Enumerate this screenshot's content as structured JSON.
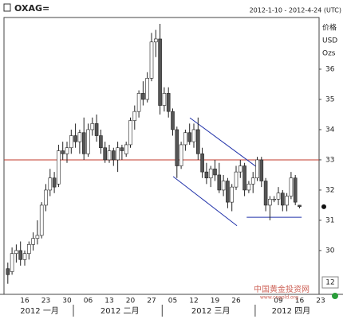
{
  "chart_data": {
    "type": "candlestick",
    "title": "OXAG=",
    "subtitle": "2012-1-10 - 2012-4-24 (UTC)",
    "axis_label": [
      "价格",
      "USD",
      "Ozs"
    ],
    "categories": [
      null,
      null,
      null,
      null,
      "16",
      null,
      null,
      null,
      null,
      "23",
      null,
      null,
      null,
      null,
      "30",
      null,
      null,
      null,
      null,
      "06",
      null,
      null,
      null,
      null,
      "13",
      null,
      null,
      null,
      null,
      "20",
      null,
      null,
      null,
      null,
      "27",
      null,
      null,
      null,
      null,
      "05",
      null,
      null,
      null,
      null,
      "12",
      null,
      null,
      null,
      null,
      "19",
      null,
      null,
      null,
      null,
      "26",
      null,
      null,
      null,
      null,
      null,
      null,
      null,
      null,
      null,
      "09",
      null,
      null,
      null,
      null,
      "16",
      null,
      null,
      null,
      null,
      "23"
    ],
    "months": [
      "2012 一月",
      "2012 二月",
      "2012 三月",
      "2012 四月"
    ],
    "open": [
      29.4,
      29.3,
      29.9,
      30.0,
      29.7,
      29.9,
      30.2,
      30.4,
      30.5,
      31.5,
      32.0,
      32.4,
      32.2,
      33.3,
      33.2,
      33.4,
      33.8,
      33.6,
      33.9,
      33.2,
      34.0,
      34.2,
      33.8,
      33.4,
      33.0,
      33.3,
      33.0,
      33.4,
      33.2,
      33.5,
      34.3,
      34.6,
      35.2,
      35.0,
      35.7,
      36.9,
      37.0,
      34.8,
      35.2,
      34.6,
      34.0,
      32.8,
      33.5,
      33.9,
      33.6,
      34.0,
      33.2,
      32.6,
      32.4,
      32.7,
      32.5,
      32.0,
      32.3,
      31.6,
      32.1,
      32.6,
      32.8,
      32.0,
      32.2,
      32.4,
      33.0,
      32.3,
      31.5,
      31.7,
      31.7,
      31.9,
      31.5,
      31.8,
      32.4,
      31.5,
      null,
      null,
      null,
      null,
      null
    ],
    "high": [
      29.6,
      30.1,
      30.2,
      30.3,
      30.0,
      30.3,
      30.6,
      31.0,
      31.6,
      32.2,
      32.7,
      32.6,
      33.5,
      33.6,
      33.6,
      34.0,
      34.2,
      34.0,
      34.4,
      34.2,
      34.4,
      34.5,
      34.0,
      33.6,
      33.5,
      33.4,
      33.6,
      33.5,
      33.6,
      34.4,
      34.8,
      35.3,
      35.6,
      35.9,
      37.2,
      37.3,
      37.5,
      35.4,
      35.4,
      34.7,
      34.1,
      33.6,
      34.0,
      34.2,
      34.2,
      34.4,
      33.4,
      32.9,
      32.8,
      33.0,
      32.9,
      32.5,
      32.4,
      32.2,
      32.8,
      33.0,
      32.9,
      32.3,
      32.6,
      33.1,
      33.1,
      32.4,
      31.8,
      31.8,
      32.1,
      32.0,
      31.9,
      32.6,
      32.5,
      31.5,
      null,
      null,
      null,
      null,
      null
    ],
    "low": [
      28.9,
      29.2,
      29.6,
      29.5,
      29.5,
      29.7,
      30.0,
      30.2,
      30.4,
      31.3,
      31.8,
      31.9,
      32.1,
      33.0,
      32.9,
      33.2,
      33.4,
      33.2,
      33.0,
      33.1,
      33.8,
      33.6,
      33.2,
      32.9,
      32.9,
      32.8,
      32.6,
      33.0,
      33.1,
      33.4,
      34.0,
      34.4,
      34.8,
      34.9,
      35.6,
      36.4,
      34.5,
      34.6,
      34.4,
      33.8,
      32.4,
      32.7,
      33.3,
      33.5,
      33.4,
      33.0,
      32.4,
      32.2,
      32.1,
      32.3,
      31.9,
      31.8,
      31.4,
      31.3,
      32.0,
      32.4,
      31.8,
      31.9,
      31.9,
      32.3,
      32.1,
      31.3,
      31.0,
      31.6,
      31.5,
      31.3,
      31.3,
      31.7,
      31.5,
      31.4,
      null,
      null,
      null,
      null,
      null
    ],
    "close": [
      29.2,
      29.9,
      30.0,
      29.7,
      29.9,
      30.2,
      30.4,
      30.5,
      31.5,
      32.0,
      32.4,
      32.1,
      33.3,
      33.2,
      33.4,
      33.8,
      33.6,
      33.9,
      33.2,
      34.0,
      34.2,
      33.8,
      33.4,
      33.0,
      33.3,
      33.0,
      33.4,
      33.3,
      33.5,
      34.3,
      34.6,
      35.2,
      35.0,
      35.7,
      36.9,
      37.0,
      34.8,
      35.2,
      34.6,
      34.0,
      32.8,
      33.5,
      33.9,
      33.6,
      34.0,
      33.2,
      32.6,
      32.4,
      32.7,
      32.5,
      32.0,
      32.3,
      31.6,
      32.1,
      32.6,
      32.8,
      32.0,
      32.2,
      32.4,
      33.0,
      32.3,
      31.5,
      31.7,
      31.7,
      31.9,
      31.5,
      31.8,
      32.4,
      31.6,
      31.45,
      null,
      null,
      null,
      null,
      null
    ],
    "ylim": [
      28.55,
      37.71
    ],
    "yticks": [
      30,
      31,
      32,
      33,
      34,
      35,
      36
    ],
    "last_price": 31.45,
    "hline": {
      "value": 33.0,
      "color": "#c0392b"
    },
    "lines": [
      {
        "color": "#2233aa",
        "points": [
          [
            43.06,
            34.39
          ],
          [
            58.9,
            32.76
          ]
        ]
      },
      {
        "color": "#2233aa",
        "points": [
          [
            39.1,
            32.45
          ],
          [
            54.2,
            30.82
          ]
        ]
      },
      {
        "color": "#2233aa",
        "points": [
          [
            56.5,
            31.1
          ],
          [
            69.5,
            31.1
          ]
        ]
      }
    ],
    "corner_label": "12",
    "watermark": {
      "title": "中国黄金投资网",
      "url": "www.cngold.org"
    }
  }
}
